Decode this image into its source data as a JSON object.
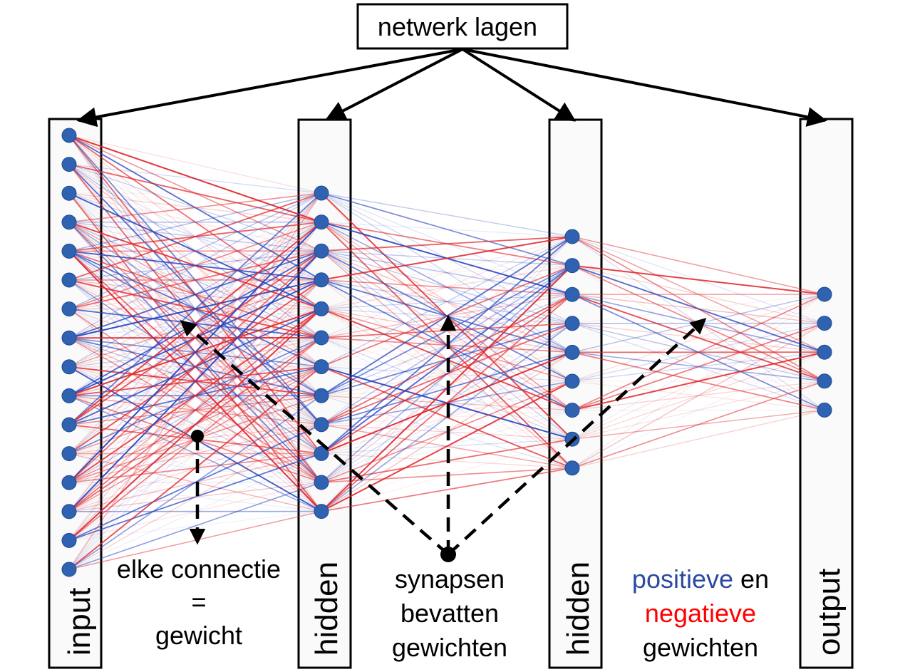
{
  "title": "netwerk lagen",
  "layers": [
    {
      "name": "input",
      "nodes": 16
    },
    {
      "name": "hidden",
      "nodes": 12
    },
    {
      "name": "hidden",
      "nodes": 9
    },
    {
      "name": "output",
      "nodes": 5
    }
  ],
  "annotations": {
    "connection": [
      "elke connectie",
      "=",
      "gewicht"
    ],
    "synapses": [
      "synapsen",
      "bevatten",
      "gewichten"
    ],
    "weights_positive": "positieve",
    "weights_and": " en",
    "weights_negative": "negatieve",
    "weights_tail": "gewichten"
  },
  "colors": {
    "positive": "#1f3fbf",
    "negative": "#e0242a",
    "node": "#2f62b0",
    "positive_text": "#2b4aa0",
    "negative_text": "#ff0000"
  }
}
